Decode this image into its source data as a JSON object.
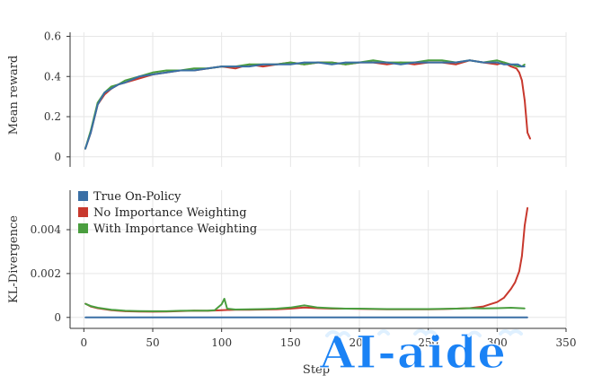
{
  "figure": {
    "x_axis_label": "Step",
    "x_ticks": [
      "0",
      "50",
      "100",
      "150",
      "200",
      "250",
      "300",
      "350"
    ],
    "watermark_text": "AI-aide"
  },
  "colors": {
    "true_on_policy": "#3a6fa5",
    "no_importance_weighting": "#c8382d",
    "with_importance_weighting": "#4a9e3f",
    "grid": "#e6e6e6",
    "axis": "#333333",
    "watermark": "#1a82f5"
  },
  "chart_data": [
    {
      "type": "line",
      "ylabel": "Mean reward",
      "xlabel": "",
      "xlim": [
        -10,
        350
      ],
      "ylim": [
        -0.05,
        0.62
      ],
      "yticks": [
        "0",
        "0.2",
        "0.4",
        "0.6"
      ],
      "grid": true,
      "series": [
        {
          "name": "No Importance Weighting",
          "color_key": "no_importance_weighting",
          "x": [
            1,
            5,
            10,
            15,
            20,
            25,
            30,
            40,
            50,
            60,
            70,
            80,
            90,
            100,
            110,
            120,
            130,
            140,
            150,
            160,
            170,
            180,
            190,
            200,
            210,
            220,
            230,
            240,
            250,
            260,
            270,
            280,
            290,
            300,
            305,
            310,
            314,
            316,
            318,
            320,
            322,
            324
          ],
          "y": [
            0.04,
            0.12,
            0.26,
            0.31,
            0.34,
            0.36,
            0.37,
            0.39,
            0.41,
            0.42,
            0.43,
            0.43,
            0.44,
            0.45,
            0.44,
            0.46,
            0.45,
            0.46,
            0.47,
            0.46,
            0.47,
            0.47,
            0.46,
            0.47,
            0.47,
            0.46,
            0.47,
            0.46,
            0.47,
            0.47,
            0.46,
            0.48,
            0.47,
            0.46,
            0.47,
            0.45,
            0.44,
            0.42,
            0.38,
            0.28,
            0.12,
            0.09
          ]
        },
        {
          "name": "With Importance Weighting",
          "color_key": "with_importance_weighting",
          "x": [
            1,
            5,
            10,
            15,
            20,
            25,
            30,
            40,
            50,
            60,
            70,
            80,
            90,
            100,
            110,
            120,
            130,
            140,
            150,
            160,
            170,
            180,
            190,
            200,
            210,
            220,
            230,
            240,
            250,
            260,
            270,
            280,
            290,
            300,
            305,
            310,
            315,
            318,
            320
          ],
          "y": [
            0.04,
            0.13,
            0.27,
            0.32,
            0.35,
            0.36,
            0.38,
            0.4,
            0.42,
            0.43,
            0.43,
            0.44,
            0.44,
            0.45,
            0.45,
            0.46,
            0.46,
            0.46,
            0.47,
            0.46,
            0.47,
            0.47,
            0.46,
            0.47,
            0.48,
            0.47,
            0.47,
            0.47,
            0.48,
            0.48,
            0.47,
            0.48,
            0.47,
            0.48,
            0.47,
            0.46,
            0.45,
            0.45,
            0.46
          ]
        },
        {
          "name": "True On-Policy",
          "color_key": "true_on_policy",
          "x": [
            1,
            5,
            10,
            15,
            20,
            25,
            30,
            40,
            50,
            60,
            70,
            80,
            90,
            100,
            110,
            120,
            130,
            140,
            150,
            160,
            170,
            180,
            190,
            200,
            210,
            220,
            230,
            240,
            250,
            260,
            270,
            280,
            290,
            300,
            305,
            310,
            315,
            318,
            320
          ],
          "y": [
            0.04,
            0.12,
            0.26,
            0.32,
            0.34,
            0.36,
            0.37,
            0.4,
            0.41,
            0.42,
            0.43,
            0.43,
            0.44,
            0.45,
            0.45,
            0.45,
            0.46,
            0.46,
            0.46,
            0.47,
            0.47,
            0.46,
            0.47,
            0.47,
            0.47,
            0.47,
            0.46,
            0.47,
            0.47,
            0.47,
            0.47,
            0.48,
            0.47,
            0.47,
            0.46,
            0.46,
            0.46,
            0.45,
            0.45
          ]
        }
      ]
    },
    {
      "type": "line",
      "ylabel": "KL-Divergence",
      "xlabel": "Step",
      "xlim": [
        -10,
        350
      ],
      "ylim": [
        -0.0005,
        0.0058
      ],
      "yticks": [
        "0",
        "0.002",
        "0.004"
      ],
      "grid": true,
      "legend": "top-left",
      "series": [
        {
          "name": "True On-Policy",
          "color_key": "true_on_policy",
          "x": [
            1,
            322
          ],
          "y": [
            0.0,
            0.0
          ]
        },
        {
          "name": "No Importance Weighting",
          "color_key": "no_importance_weighting",
          "x": [
            1,
            5,
            10,
            20,
            30,
            40,
            50,
            60,
            70,
            80,
            90,
            100,
            110,
            120,
            130,
            140,
            150,
            160,
            170,
            180,
            190,
            200,
            210,
            220,
            230,
            240,
            250,
            260,
            270,
            280,
            290,
            295,
            300,
            305,
            310,
            313,
            316,
            318,
            320,
            322
          ],
          "y": [
            0.00063,
            0.0005,
            0.00042,
            0.00033,
            0.00028,
            0.00027,
            0.00026,
            0.00027,
            0.00029,
            0.00031,
            0.0003,
            0.00033,
            0.00035,
            0.00035,
            0.00036,
            0.00037,
            0.0004,
            0.00045,
            0.00042,
            0.0004,
            0.0004,
            0.00039,
            0.00038,
            0.00037,
            0.00037,
            0.00037,
            0.00037,
            0.00038,
            0.0004,
            0.00042,
            0.0005,
            0.0006,
            0.0007,
            0.0009,
            0.0013,
            0.0016,
            0.0021,
            0.0028,
            0.0042,
            0.005
          ]
        },
        {
          "name": "With Importance Weighting",
          "color_key": "with_importance_weighting",
          "x": [
            1,
            5,
            10,
            20,
            30,
            40,
            50,
            60,
            70,
            80,
            90,
            95,
            100,
            102,
            104,
            110,
            120,
            130,
            140,
            150,
            160,
            170,
            180,
            190,
            200,
            210,
            220,
            230,
            240,
            250,
            260,
            270,
            280,
            290,
            300,
            310,
            320
          ],
          "y": [
            0.00062,
            0.00052,
            0.00044,
            0.00035,
            0.0003,
            0.00029,
            0.00028,
            0.00028,
            0.0003,
            0.00031,
            0.00031,
            0.00033,
            0.0006,
            0.00085,
            0.0004,
            0.00036,
            0.00037,
            0.00038,
            0.0004,
            0.00045,
            0.00055,
            0.00045,
            0.00042,
            0.0004,
            0.0004,
            0.00039,
            0.00038,
            0.00038,
            0.00038,
            0.00038,
            0.00039,
            0.0004,
            0.00042,
            0.00041,
            0.00042,
            0.00044,
            0.00041
          ]
        }
      ]
    }
  ]
}
